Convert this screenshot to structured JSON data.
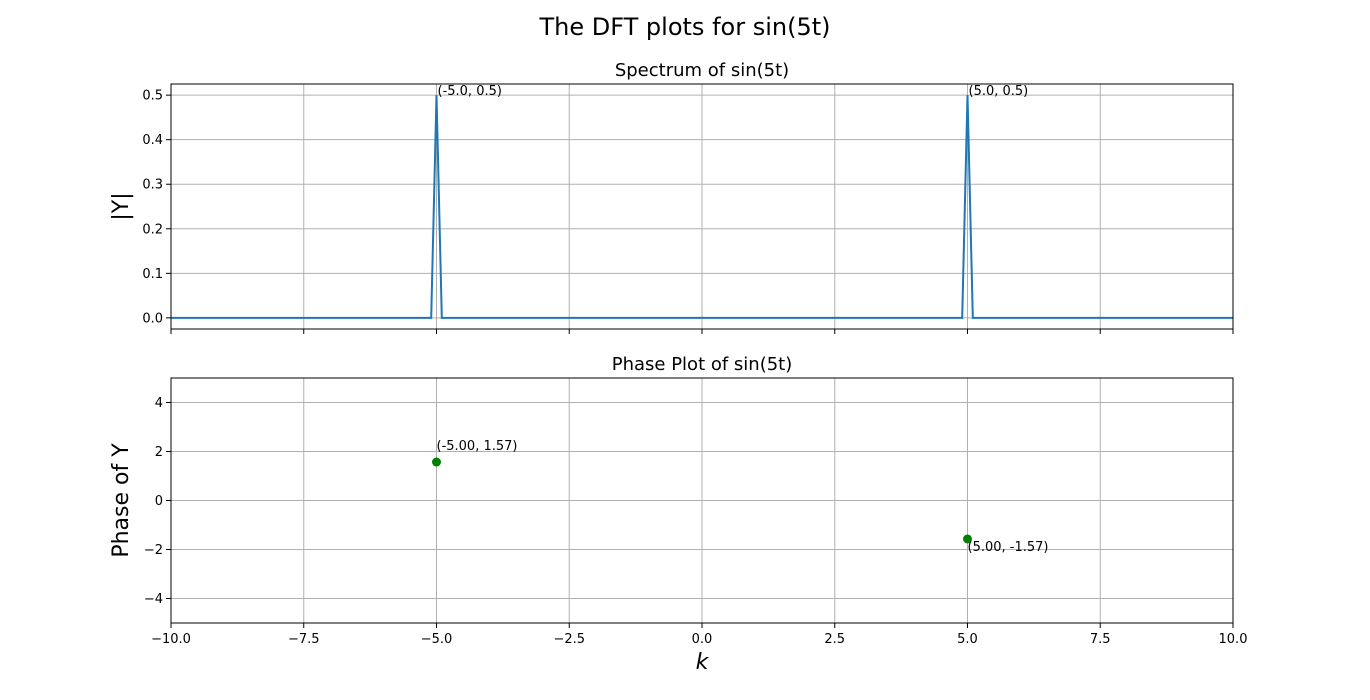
{
  "figure": {
    "suptitle": "The DFT plots for sin(5t)"
  },
  "chart_data": [
    {
      "type": "line",
      "title": "Spectrum of sin(5t)",
      "xlabel": "",
      "ylabel": "|Y|",
      "xlim": [
        -10,
        10
      ],
      "ylim": [
        -0.025,
        0.525
      ],
      "x_ticks": [
        -10,
        -7.5,
        -5,
        -2.5,
        0,
        2.5,
        5,
        7.5,
        10
      ],
      "y_ticks": [
        0.0,
        0.1,
        0.2,
        0.3,
        0.4,
        0.5
      ],
      "y_tick_labels": [
        "0.0",
        "0.1",
        "0.2",
        "0.3",
        "0.4",
        "0.5"
      ],
      "grid": true,
      "series": [
        {
          "color": "#1f77b4",
          "x": [
            -10,
            -5.1,
            -5.0,
            -4.9,
            4.9,
            5.0,
            5.1,
            10
          ],
          "y": [
            0,
            0,
            0.5,
            0,
            0,
            0.5,
            0,
            0
          ]
        }
      ],
      "annotations": [
        {
          "text": "(-5.0, 0.5)",
          "x": -5.0,
          "y": 0.5
        },
        {
          "text": "(5.0, 0.5)",
          "x": 5.0,
          "y": 0.5
        }
      ]
    },
    {
      "type": "scatter",
      "title": "Phase Plot of sin(5t)",
      "xlabel": "k",
      "ylabel": "Phase of Y",
      "xlim": [
        -10,
        10
      ],
      "ylim": [
        -5,
        5
      ],
      "x_ticks": [
        -10,
        -7.5,
        -5,
        -2.5,
        0,
        2.5,
        5,
        7.5,
        10
      ],
      "x_tick_labels": [
        "−10.0",
        "−7.5",
        "−5.0",
        "−2.5",
        "0.0",
        "2.5",
        "5.0",
        "7.5",
        "10.0"
      ],
      "y_ticks": [
        -4,
        -2,
        0,
        2,
        4
      ],
      "y_tick_labels": [
        "−4",
        "−2",
        "0",
        "2",
        "4"
      ],
      "grid": true,
      "series": [
        {
          "color": "#008000",
          "x": [
            -5.0,
            5.0
          ],
          "y": [
            1.57,
            -1.57
          ]
        }
      ],
      "annotations": [
        {
          "text": "(-5.00, 1.57)",
          "x": -5.0,
          "y": 1.57,
          "placement": "above"
        },
        {
          "text": "(5.00, -1.57)",
          "x": 5.0,
          "y": -1.57,
          "placement": "below"
        }
      ]
    }
  ]
}
